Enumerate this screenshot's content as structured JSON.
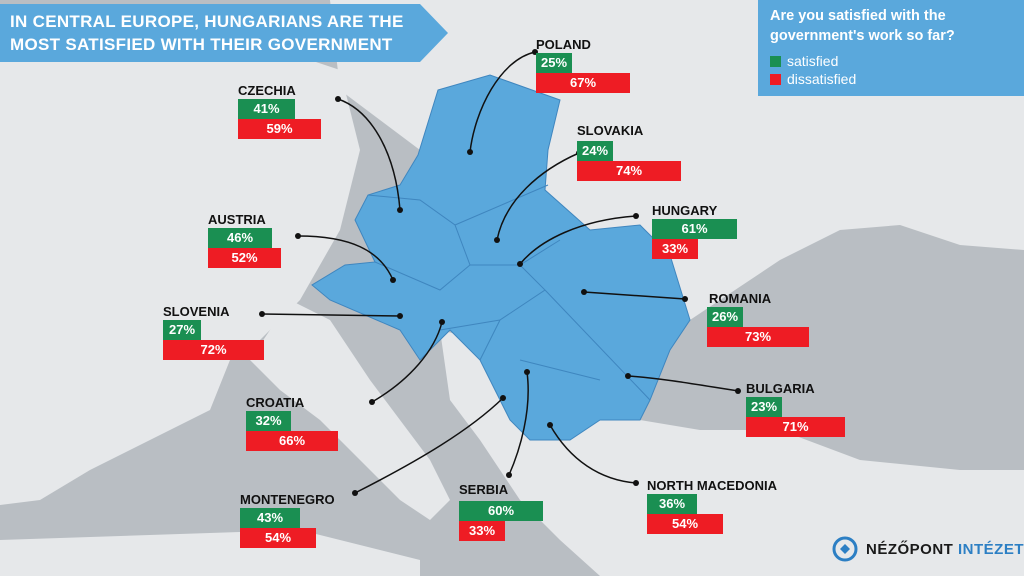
{
  "title": {
    "line1": "IN CENTRAL EUROPE, HUNGARIANS ARE THE",
    "line2": "MOST SATISFIED WITH THEIR GOVERNMENT"
  },
  "legend": {
    "question_line1": "Are you satisfied with the",
    "question_line2": "government's work so far?",
    "satisfied_label": "satisfied",
    "dissatisfied_label": "dissatisfied",
    "satisfied_color": "#1a8f52",
    "dissatisfied_color": "#ee1c24"
  },
  "countries": {
    "poland": {
      "name": "POLAND",
      "satisfied": "25%",
      "dissatisfied": "67%"
    },
    "czechia": {
      "name": "CZECHIA",
      "satisfied": "41%",
      "dissatisfied": "59%"
    },
    "slovakia": {
      "name": "SLOVAKIA",
      "satisfied": "24%",
      "dissatisfied": "74%"
    },
    "austria": {
      "name": "AUSTRIA",
      "satisfied": "46%",
      "dissatisfied": "52%"
    },
    "hungary": {
      "name": "HUNGARY",
      "satisfied": "61%",
      "dissatisfied": "33%"
    },
    "romania": {
      "name": "ROMANIA",
      "satisfied": "26%",
      "dissatisfied": "73%"
    },
    "slovenia": {
      "name": "SLOVENIA",
      "satisfied": "27%",
      "dissatisfied": "72%"
    },
    "croatia": {
      "name": "CROATIA",
      "satisfied": "32%",
      "dissatisfied": "66%"
    },
    "bulgaria": {
      "name": "BULGARIA",
      "satisfied": "23%",
      "dissatisfied": "71%"
    },
    "montenegro": {
      "name": "MONTENEGRO",
      "satisfied": "43%",
      "dissatisfied": "54%"
    },
    "serbia": {
      "name": "SERBIA",
      "satisfied": "60%",
      "dissatisfied": "33%"
    },
    "north_macedonia": {
      "name": "NORTH MACEDONIA",
      "satisfied": "36%",
      "dissatisfied": "54%"
    }
  },
  "logo": {
    "text_a": "NÉZŐPONT",
    "text_b": "INTÉZET",
    "icon": "nezopont-logo-icon"
  }
}
